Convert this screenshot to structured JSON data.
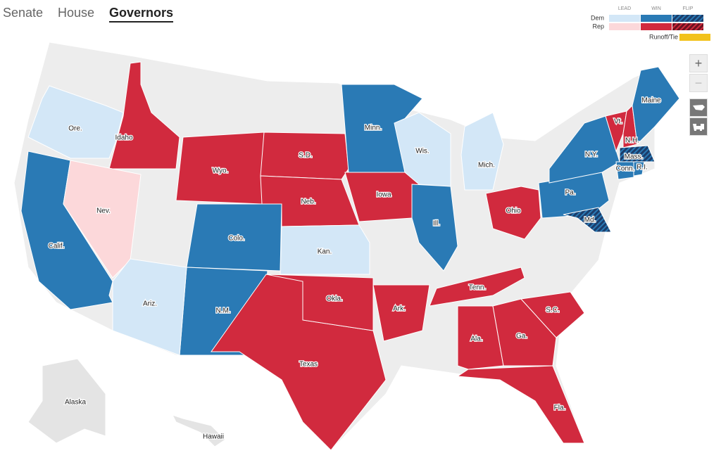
{
  "tabs": [
    "Senate",
    "House",
    "Governors"
  ],
  "selected_tab": 2,
  "legend": {
    "columns": [
      "LEAD",
      "WIN",
      "FLIP"
    ],
    "rows": [
      "Dem",
      "Rep"
    ],
    "runoff": "Runoff/Tie",
    "colors": {
      "Dem": [
        "#d3e7f7",
        "#2a7ab5",
        "#1b5a8f"
      ],
      "Rep": [
        "#fcd8da",
        "#d12a3e",
        "#a51d2e"
      ],
      "runoff": "#f2c21b"
    }
  },
  "controls": {
    "zoom_in": "+",
    "zoom_out": "−"
  },
  "states": [
    {
      "label": "Ore.",
      "color": "#d3e7f7"
    },
    {
      "label": "Idaho",
      "color": "#d12a3e"
    },
    {
      "label": "Calif.",
      "color": "#2a7ab5"
    },
    {
      "label": "Nev.",
      "color": "#fcd8da"
    },
    {
      "label": "Wyo.",
      "color": "#d12a3e"
    },
    {
      "label": "S.D.",
      "color": "#d12a3e"
    },
    {
      "label": "Neb.",
      "color": "#d12a3e"
    },
    {
      "label": "Iowa",
      "color": "#d12a3e"
    },
    {
      "label": "Minn.",
      "color": "#2a7ab5"
    },
    {
      "label": "Wis.",
      "color": "#d3e7f7"
    },
    {
      "label": "Mich.",
      "color": "#d3e7f7"
    },
    {
      "label": "Ill.",
      "color": "#2a7ab5"
    },
    {
      "label": "Ohio",
      "color": "#d12a3e"
    },
    {
      "label": "Pa.",
      "color": "#2a7ab5"
    },
    {
      "label": "N.Y.",
      "color": "#2a7ab5"
    },
    {
      "label": "Vt.",
      "color": "#d12a3e"
    },
    {
      "label": "N.H.",
      "color": "#d12a3e"
    },
    {
      "label": "Maine",
      "color": "#2a7ab5"
    },
    {
      "label": "Mass.",
      "color": "#1b5a8f"
    },
    {
      "label": "Conn.",
      "color": "#2a7ab5"
    },
    {
      "label": "R.I.",
      "color": "#2a7ab5"
    },
    {
      "label": "Md.",
      "color": "#1b5a8f"
    },
    {
      "label": "Colo.",
      "color": "#2a7ab5"
    },
    {
      "label": "Kan.",
      "color": "#d3e7f7"
    },
    {
      "label": "N.M.",
      "color": "#2a7ab5"
    },
    {
      "label": "Ariz.",
      "color": "#d3e7f7"
    },
    {
      "label": "Texas",
      "color": "#d12a3e"
    },
    {
      "label": "Okla.",
      "color": "#d12a3e"
    },
    {
      "label": "Ark.",
      "color": "#d12a3e"
    },
    {
      "label": "Tenn.",
      "color": "#d12a3e"
    },
    {
      "label": "Ala.",
      "color": "#d12a3e"
    },
    {
      "label": "Ga.",
      "color": "#d12a3e"
    },
    {
      "label": "S.C.",
      "color": "#d12a3e"
    },
    {
      "label": "Fla.",
      "color": "#d12a3e"
    },
    {
      "label": "Alaska",
      "color": "#e4e4e4"
    },
    {
      "label": "Hawaii",
      "color": "#e4e4e4"
    }
  ]
}
